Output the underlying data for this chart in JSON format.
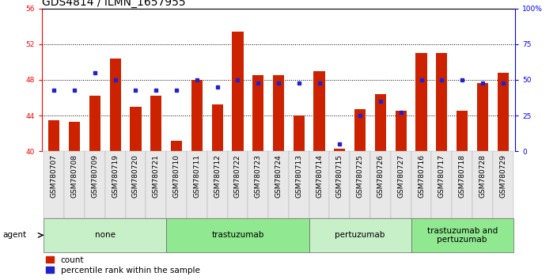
{
  "title": "GDS4814 / ILMN_1657955",
  "samples": [
    "GSM780707",
    "GSM780708",
    "GSM780709",
    "GSM780719",
    "GSM780720",
    "GSM780721",
    "GSM780710",
    "GSM780711",
    "GSM780712",
    "GSM780722",
    "GSM780723",
    "GSM780724",
    "GSM780713",
    "GSM780714",
    "GSM780715",
    "GSM780725",
    "GSM780726",
    "GSM780727",
    "GSM780716",
    "GSM780717",
    "GSM780718",
    "GSM780728",
    "GSM780729"
  ],
  "red_values": [
    43.5,
    43.3,
    46.2,
    50.4,
    45.0,
    46.2,
    41.2,
    48.0,
    45.2,
    53.4,
    48.5,
    48.5,
    44.0,
    49.0,
    40.3,
    44.7,
    46.4,
    44.5,
    51.0,
    51.0,
    44.5,
    47.6,
    48.8
  ],
  "blue_pct": [
    43,
    43,
    55,
    50,
    43,
    43,
    43,
    50,
    45,
    50,
    48,
    48,
    48,
    48,
    5,
    25,
    35,
    27,
    50,
    50,
    50,
    48,
    48
  ],
  "groups": [
    {
      "label": "none",
      "start": 0,
      "end": 6,
      "color": "#c8f0c8"
    },
    {
      "label": "trastuzumab",
      "start": 6,
      "end": 13,
      "color": "#90e890"
    },
    {
      "label": "pertuzumab",
      "start": 13,
      "end": 18,
      "color": "#c8f0c8"
    },
    {
      "label": "trastuzumab and\npertuzumab",
      "start": 18,
      "end": 23,
      "color": "#90e890"
    }
  ],
  "ylim_left": [
    40,
    56
  ],
  "yticks_left": [
    40,
    44,
    48,
    52,
    56
  ],
  "ylim_right": [
    0,
    100
  ],
  "yticks_right": [
    0,
    25,
    50,
    75,
    100
  ],
  "bar_color": "#cc2200",
  "blue_color": "#2222cc",
  "title_fontsize": 10,
  "tick_fontsize": 6.5,
  "label_fontsize": 7.5,
  "grid_lines": [
    44,
    48,
    52
  ]
}
